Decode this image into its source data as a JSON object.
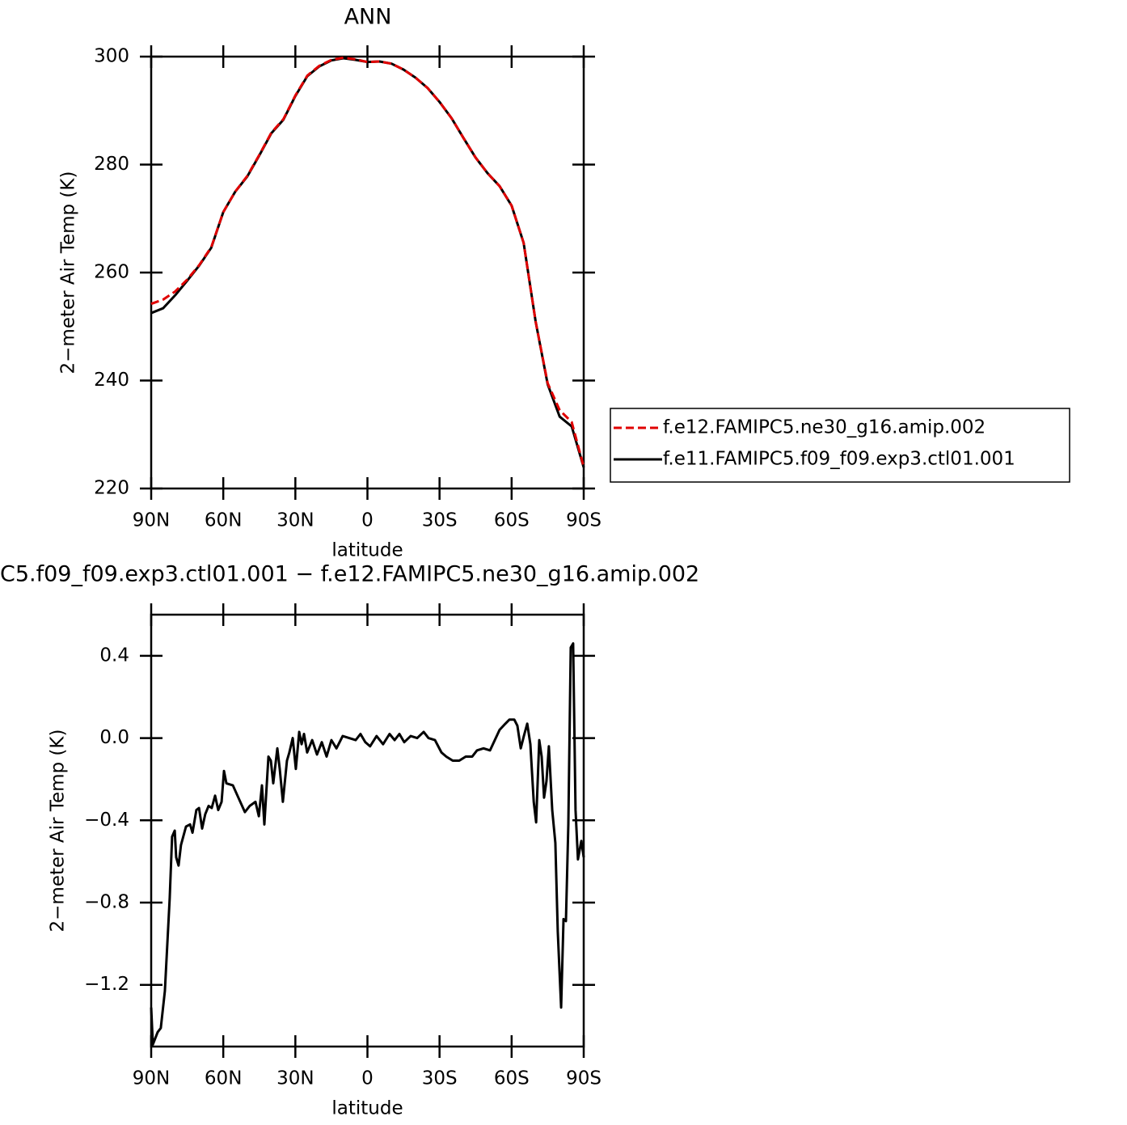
{
  "chart_data": [
    {
      "type": "line",
      "title": "ANN",
      "xlabel": "latitude",
      "ylabel": "2−meter Air Temp (K)",
      "x": [
        90,
        85,
        80,
        75,
        70,
        65,
        60,
        55,
        50,
        45,
        40,
        35,
        30,
        25,
        20,
        15,
        10,
        5,
        0,
        -5,
        -10,
        -15,
        -20,
        -25,
        -30,
        -35,
        -40,
        -45,
        -50,
        -55,
        -60,
        -65,
        -70,
        -75,
        -80,
        -85,
        -90
      ],
      "series": [
        {
          "name": "f.e12.FAMIPC5.ne30_g16.amip.002",
          "color": "#e00000",
          "dash": true,
          "values": [
            254.2,
            255.0,
            256.5,
            258.7,
            261.4,
            264.7,
            271.2,
            275.0,
            277.9,
            281.8,
            285.9,
            288.4,
            292.8,
            296.5,
            298.3,
            299.4,
            299.8,
            299.5,
            299.0,
            299.1,
            298.7,
            297.6,
            296.1,
            294.2,
            291.6,
            288.6,
            284.9,
            281.3,
            278.4,
            276.0,
            272.4,
            265.5,
            250.9,
            239.5,
            234.5,
            232.3,
            224.0
          ]
        },
        {
          "name": "f.e11.FAMIPC5.f09_f09.exp3.ctl01.001",
          "color": "#000000",
          "dash": false,
          "values": [
            252.5,
            253.4,
            255.8,
            258.5,
            261.3,
            264.6,
            271.2,
            275.0,
            277.8,
            281.7,
            285.8,
            288.3,
            292.7,
            296.4,
            298.2,
            299.3,
            299.7,
            299.4,
            299.0,
            299.1,
            298.7,
            297.6,
            296.1,
            294.2,
            291.6,
            288.6,
            284.9,
            281.3,
            278.4,
            276.0,
            272.4,
            265.5,
            250.9,
            239.3,
            233.3,
            231.5,
            223.9
          ]
        }
      ],
      "xlim": [
        90,
        -90
      ],
      "xticks": [
        {
          "value": 90,
          "label": "90N"
        },
        {
          "value": 60,
          "label": "60N"
        },
        {
          "value": 30,
          "label": "30N"
        },
        0,
        {
          "value": -30,
          "label": "30S"
        },
        {
          "value": -60,
          "label": "60S"
        },
        {
          "value": -90,
          "label": "90S"
        }
      ],
      "ylim": [
        220,
        300
      ],
      "yticks": [
        220,
        240,
        260,
        280,
        300
      ],
      "legend": "right"
    },
    {
      "type": "line",
      "title": "C5.f09_f09.exp3.ctl01.001 − f.e12.FAMIPC5.ne30_g16.amip.002",
      "xlabel": "latitude",
      "ylabel": "2−meter Air Temp (K)",
      "x": [
        90,
        89.3,
        87.3,
        86,
        84.3,
        82.3,
        81.3,
        80.2,
        79.6,
        78.6,
        77.6,
        75.5,
        73.8,
        72.8,
        71.2,
        70.1,
        68.8,
        67.5,
        66.1,
        64.8,
        63.4,
        62.1,
        60.7,
        59.7,
        58.7,
        56,
        53.7,
        51,
        49,
        46.6,
        45.2,
        43.9,
        42.9,
        41.2,
        40.2,
        39.2,
        37.5,
        36.5,
        35.2,
        33.5,
        32.5,
        31.1,
        29.8,
        28.4,
        27.4,
        26.4,
        25.1,
        23,
        21,
        19,
        17,
        15,
        12.9,
        10.3,
        7.6,
        4.9,
        2.9,
        0.9,
        -1.1,
        -3.8,
        -6.5,
        -9.2,
        -11.3,
        -13.3,
        -15.3,
        -18,
        -20.7,
        -23.4,
        -25.4,
        -28.1,
        -30.8,
        -32.8,
        -35.5,
        -38.2,
        -40.9,
        -43.6,
        -45.6,
        -48.3,
        -51,
        -53,
        -55,
        -57.4,
        -59.1,
        -61.1,
        -62.4,
        -63.8,
        -65.1,
        -66.5,
        -67.8,
        -69.2,
        -70.2,
        -71.5,
        -72.5,
        -73.5,
        -74.5,
        -75.5,
        -76.9,
        -78.2,
        -79.2,
        -80.6,
        -81.6,
        -82.6,
        -83.6,
        -84.6,
        -85.6,
        -86.6,
        -87.6,
        -89,
        -90
      ],
      "series": [
        {
          "name": null,
          "color": "#000000",
          "dash": false,
          "values": [
            -1.31,
            -1.49,
            -1.43,
            -1.41,
            -1.23,
            -0.78,
            -0.48,
            -0.45,
            -0.58,
            -0.62,
            -0.52,
            -0.43,
            -0.42,
            -0.46,
            -0.35,
            -0.34,
            -0.44,
            -0.37,
            -0.33,
            -0.34,
            -0.28,
            -0.35,
            -0.31,
            -0.16,
            -0.22,
            -0.23,
            -0.29,
            -0.36,
            -0.33,
            -0.31,
            -0.38,
            -0.23,
            -0.42,
            -0.09,
            -0.11,
            -0.22,
            -0.05,
            -0.15,
            -0.31,
            -0.11,
            -0.07,
            0,
            -0.15,
            0.03,
            -0.03,
            0.02,
            -0.07,
            -0.01,
            -0.08,
            -0.02,
            -0.09,
            -0.01,
            -0.05,
            0.01,
            0,
            -0.01,
            0.02,
            -0.02,
            -0.04,
            0.01,
            -0.03,
            0.02,
            -0.01,
            0.02,
            -0.02,
            0.01,
            0,
            0.03,
            0,
            -0.01,
            -0.07,
            -0.09,
            -0.11,
            -0.11,
            -0.09,
            -0.09,
            -0.06,
            -0.05,
            -0.06,
            -0.01,
            0.04,
            0.07,
            0.09,
            0.09,
            0.06,
            -0.05,
            0.01,
            0.07,
            -0.03,
            -0.31,
            -0.41,
            -0.01,
            -0.09,
            -0.29,
            -0.21,
            -0.04,
            -0.35,
            -0.51,
            -0.94,
            -1.31,
            -0.88,
            -0.89,
            -0.42,
            0.44,
            0.46,
            -0.35,
            -0.59,
            -0.5,
            -0.58
          ]
        }
      ],
      "xlim": [
        90,
        -90
      ],
      "xticks": [
        {
          "value": 90,
          "label": "90N"
        },
        {
          "value": 60,
          "label": "60N"
        },
        {
          "value": 30,
          "label": "30N"
        },
        0,
        {
          "value": -30,
          "label": "30S"
        },
        {
          "value": -60,
          "label": "60S"
        },
        {
          "value": -90,
          "label": "90S"
        }
      ],
      "ylim": [
        -1.5,
        0.6
      ],
      "yticks": [
        {
          "value": -1.2,
          "label": "−1.2"
        },
        {
          "value": -0.8,
          "label": "−0.8"
        },
        {
          "value": -0.4,
          "label": "−0.4"
        },
        {
          "value": 0,
          "label": "0.0"
        },
        0.4
      ]
    }
  ]
}
